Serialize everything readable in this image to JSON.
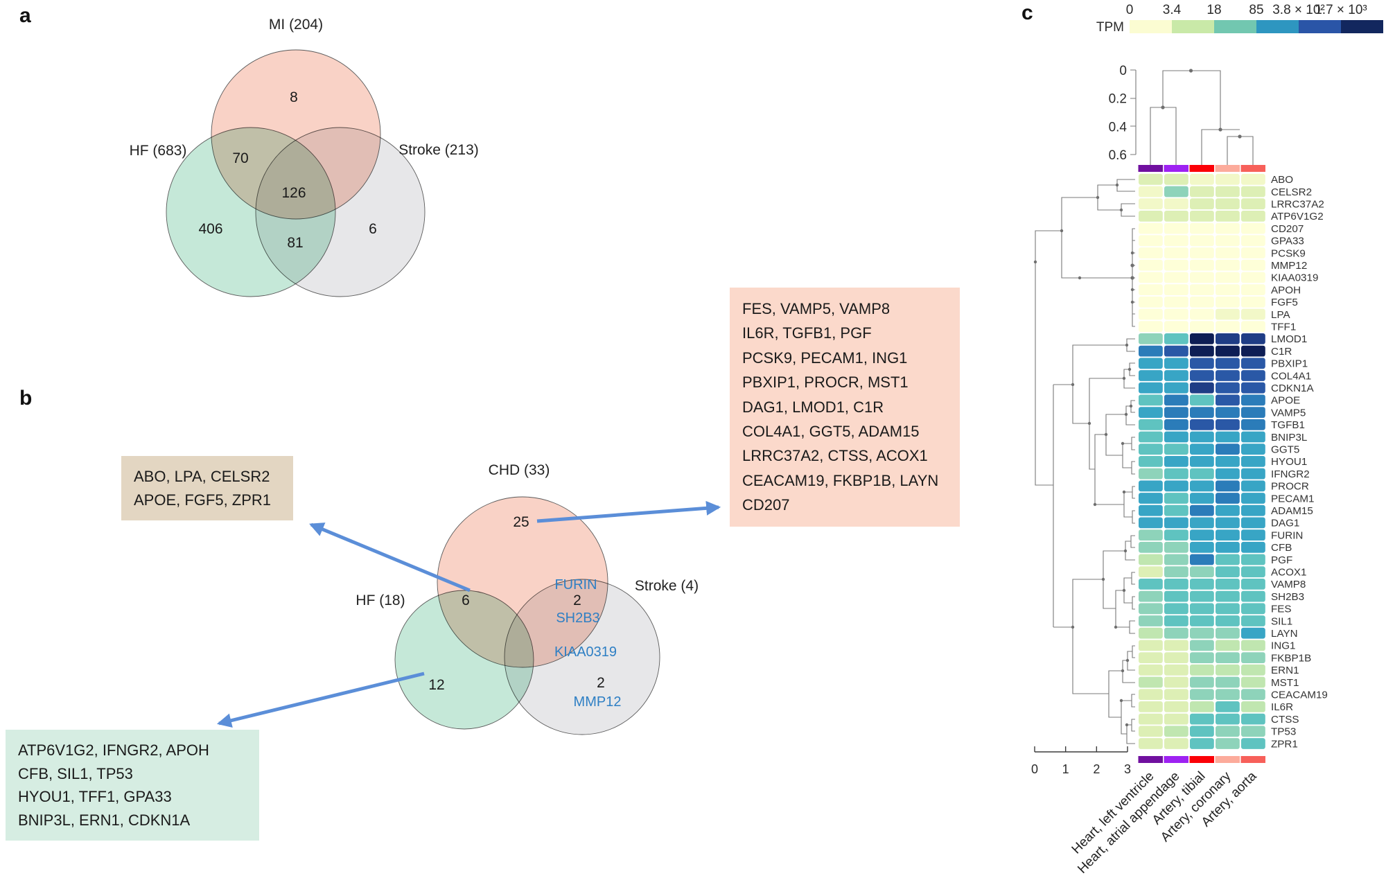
{
  "figure": {
    "panel_labels": {
      "a": "a",
      "b": "b",
      "c": "c"
    }
  },
  "colors": {
    "venn_pink": "#f9d2c6",
    "venn_mint": "#c5e8d8",
    "venn_gray": "#e7e7e9",
    "blue_gene": "#2e7fc4",
    "arrow_blue": "#5b8ed8",
    "box_tan": "#e3d6c2",
    "box_pink": "#fbd9cb",
    "box_mint": "#d6ede2"
  },
  "chart_data": [
    {
      "type": "venn",
      "panel": "a",
      "sets": [
        {
          "label": "MI (204)",
          "size": 204
        },
        {
          "label": "HF (683)",
          "size": 683
        },
        {
          "label": "Stroke (213)",
          "size": 213
        }
      ],
      "counts": {
        "mi_only": "8",
        "mi_hf": "70",
        "center": "126",
        "hf_only": "406",
        "hf_stroke": "81",
        "stroke_only": "6"
      }
    },
    {
      "type": "venn",
      "panel": "b",
      "sets": [
        {
          "label": "CHD (33)",
          "size": 33
        },
        {
          "label": "HF (18)",
          "size": 18
        },
        {
          "label": "Stroke (4)",
          "size": 4
        }
      ],
      "counts": {
        "chd_only": "25",
        "chd_hf": "6",
        "chd_stroke": "2",
        "hf_only": "12",
        "stroke_only": "2"
      },
      "genes": {
        "chd_stroke_top": "FURIN",
        "chd_stroke_bottom": "SH2B3",
        "stroke_top": "KIAA0319",
        "stroke_bottom": "MMP12"
      },
      "callouts": {
        "chd_hf_box": {
          "lines": [
            "ABO, LPA, CELSR2",
            "APOE, FGF5, ZPR1"
          ]
        },
        "chd_box": {
          "lines": [
            "FES, VAMP5, VAMP8",
            "IL6R, TGFB1, PGF",
            "PCSK9, PECAM1, ING1",
            "PBXIP1, PROCR, MST1",
            "DAG1, LMOD1, C1R",
            "COL4A1, GGT5, ADAM15",
            "LRRC37A2, CTSS, ACOX1",
            "CEACAM19, FKBP1B, LAYN",
            "CD207"
          ]
        },
        "hf_box": {
          "lines": [
            "ATP6V1G2, IFNGR2, APOH",
            "CFB, SIL1, TP53",
            "HYOU1, TFF1, GPA33",
            "BNIP3L, ERN1, CDKN1A"
          ]
        }
      }
    },
    {
      "type": "heatmap",
      "legend": {
        "label": "TPM",
        "tick_labels": [
          "0",
          "3.4",
          "18",
          "85",
          "3.8 × 10²",
          "1.7 × 10³"
        ],
        "colors": [
          "#fbfcd2",
          "#c9e9a8",
          "#72c7b0",
          "#2e96c0",
          "#2a55a7",
          "#12275e"
        ]
      },
      "columns": [
        "Heart, left ventricle",
        "Heart, atrial appendage",
        "Artery, tibial",
        "Artery, coronary",
        "Artery, aorta"
      ],
      "column_strip_colors": [
        "#70109f",
        "#9e22f2",
        "#fb0007",
        "#fcab9b",
        "#f7605a"
      ],
      "col_dendrogram_axis_ticks": [
        "0",
        "0.2",
        "0.4",
        "0.6"
      ],
      "row_dendrogram_axis_ticks": [
        "0",
        "1",
        "2",
        "3"
      ],
      "palette": [
        "#feffd8",
        "#f2f8c8",
        "#ddefb5",
        "#c0e6b0",
        "#8ed3ba",
        "#5fc3c0",
        "#38a5c5",
        "#2b7cb9",
        "#2a58a6",
        "#1f3d85",
        "#0e1e55"
      ],
      "rows": [
        "ABO",
        "CELSR2",
        "LRRC37A2",
        "ATP6V1G2",
        "CD207",
        "GPA33",
        "PCSK9",
        "MMP12",
        "KIAA0319",
        "APOH",
        "FGF5",
        "LPA",
        "TFF1",
        "LMOD1",
        "C1R",
        "PBXIP1",
        "COL4A1",
        "CDKN1A",
        "APOE",
        "VAMP5",
        "TGFB1",
        "BNIP3L",
        "GGT5",
        "HYOU1",
        "IFNGR2",
        "PROCR",
        "PECAM1",
        "ADAM15",
        "DAG1",
        "FURIN",
        "CFB",
        "PGF",
        "ACOX1",
        "VAMP8",
        "SH2B3",
        "FES",
        "SIL1",
        "LAYN",
        "ING1",
        "FKBP1B",
        "ERN1",
        "MST1",
        "CEACAM19",
        "IL6R",
        "CTSS",
        "TP53",
        "ZPR1"
      ],
      "levels": [
        [
          2,
          2,
          1,
          1,
          1
        ],
        [
          1,
          4,
          2,
          2,
          2
        ],
        [
          1,
          1,
          2,
          2,
          2
        ],
        [
          2,
          2,
          2,
          2,
          2
        ],
        [
          0,
          0,
          0,
          0,
          0
        ],
        [
          0,
          0,
          0,
          0,
          0
        ],
        [
          0,
          0,
          0,
          0,
          0
        ],
        [
          0,
          0,
          0,
          0,
          0
        ],
        [
          0,
          0,
          0,
          0,
          0
        ],
        [
          0,
          0,
          0,
          0,
          0
        ],
        [
          0,
          0,
          0,
          0,
          0
        ],
        [
          0,
          0,
          0,
          1,
          1
        ],
        [
          0,
          0,
          0,
          0,
          0
        ],
        [
          4,
          5,
          10,
          9,
          9
        ],
        [
          7,
          8,
          10,
          10,
          10
        ],
        [
          6,
          6,
          8,
          8,
          8
        ],
        [
          6,
          6,
          8,
          8,
          8
        ],
        [
          6,
          6,
          9,
          8,
          8
        ],
        [
          5,
          7,
          5,
          8,
          7
        ],
        [
          6,
          7,
          7,
          7,
          7
        ],
        [
          5,
          7,
          8,
          8,
          7
        ],
        [
          5,
          6,
          6,
          6,
          6
        ],
        [
          5,
          5,
          6,
          7,
          6
        ],
        [
          5,
          6,
          6,
          6,
          6
        ],
        [
          4,
          5,
          5,
          6,
          6
        ],
        [
          6,
          6,
          6,
          7,
          6
        ],
        [
          6,
          5,
          6,
          7,
          6
        ],
        [
          6,
          5,
          7,
          6,
          6
        ],
        [
          6,
          6,
          6,
          6,
          6
        ],
        [
          4,
          5,
          6,
          6,
          6
        ],
        [
          4,
          4,
          6,
          6,
          6
        ],
        [
          3,
          4,
          7,
          5,
          5
        ],
        [
          2,
          4,
          4,
          5,
          5
        ],
        [
          5,
          5,
          5,
          5,
          5
        ],
        [
          4,
          5,
          5,
          5,
          5
        ],
        [
          4,
          5,
          5,
          5,
          5
        ],
        [
          4,
          5,
          5,
          5,
          5
        ],
        [
          3,
          4,
          4,
          4,
          6
        ],
        [
          2,
          2,
          4,
          3,
          3
        ],
        [
          2,
          2,
          4,
          4,
          4
        ],
        [
          2,
          2,
          3,
          3,
          3
        ],
        [
          3,
          2,
          4,
          4,
          3
        ],
        [
          2,
          2,
          4,
          4,
          4
        ],
        [
          2,
          2,
          3,
          5,
          3
        ],
        [
          2,
          2,
          5,
          5,
          5
        ],
        [
          2,
          3,
          5,
          4,
          4
        ],
        [
          2,
          2,
          5,
          4,
          5
        ]
      ]
    }
  ]
}
